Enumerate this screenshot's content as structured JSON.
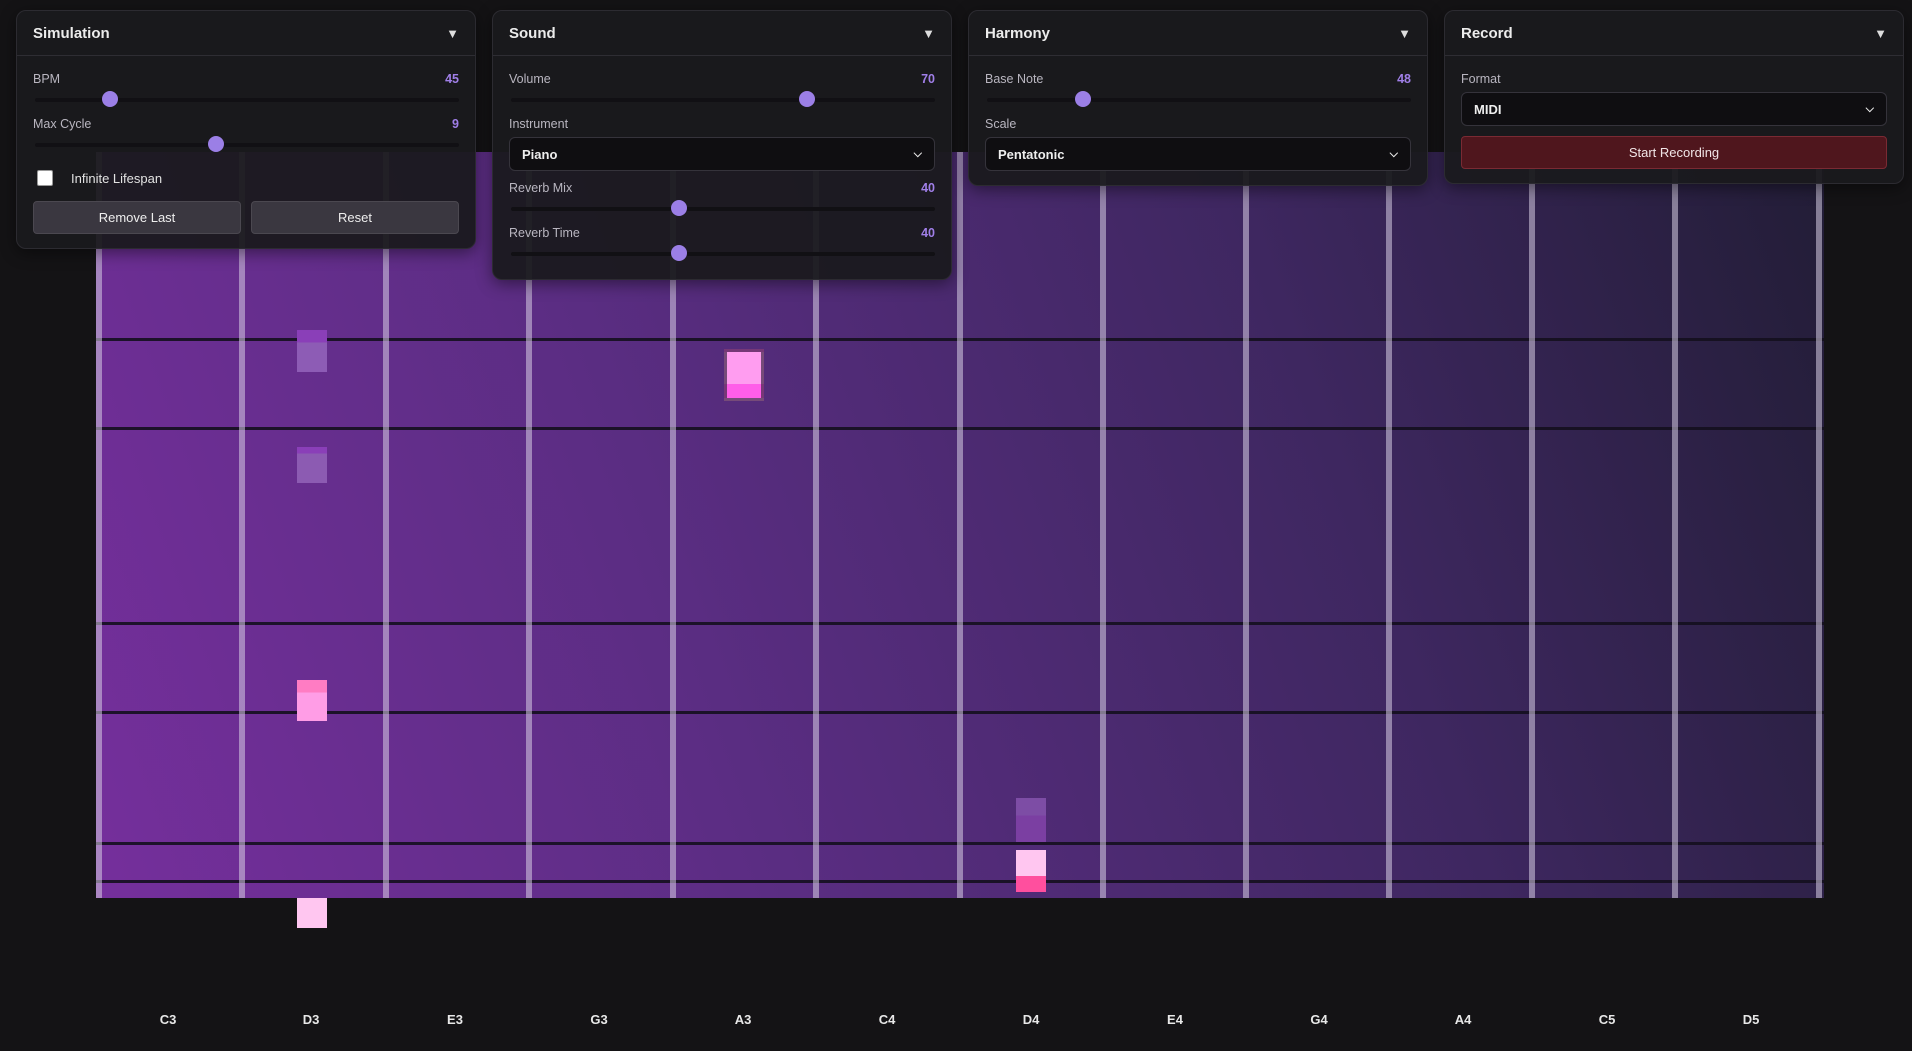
{
  "panels": {
    "simulation": {
      "title": "Simulation",
      "bpm": {
        "label": "BPM",
        "value": "45",
        "fraction": 0.18
      },
      "max_cycle": {
        "label": "Max Cycle",
        "value": "9",
        "fraction": 0.43
      },
      "infinite_lifespan": {
        "label": "Infinite Lifespan",
        "checked": false
      },
      "remove_last_label": "Remove Last",
      "reset_label": "Reset"
    },
    "sound": {
      "title": "Sound",
      "volume": {
        "label": "Volume",
        "value": "70",
        "fraction": 0.7
      },
      "instrument": {
        "label": "Instrument",
        "selected": "Piano"
      },
      "reverb_mix": {
        "label": "Reverb Mix",
        "value": "40",
        "fraction": 0.4
      },
      "reverb_time": {
        "label": "Reverb Time",
        "value": "40",
        "fraction": 0.4
      }
    },
    "harmony": {
      "title": "Harmony",
      "base_note": {
        "label": "Base Note",
        "value": "48",
        "fraction": 0.23
      },
      "scale": {
        "label": "Scale",
        "selected": "Pentatonic"
      }
    },
    "record": {
      "title": "Record",
      "format": {
        "label": "Format",
        "selected": "MIDI"
      },
      "start_label": "Start Recording"
    }
  },
  "lanes": {
    "notes": [
      "C3",
      "D3",
      "E3",
      "G3",
      "A3",
      "C4",
      "D4",
      "E4",
      "G4",
      "A4",
      "C5",
      "D5"
    ]
  },
  "icons": {
    "collapse": "triangle-down-icon",
    "select_chevron": "chevron-down-icon"
  },
  "colors": {
    "accent": "#9b7fe6",
    "record": "#4f161d",
    "field_start": "#752f9c",
    "field_end": "#221d36",
    "note_light": "#ffc6ef",
    "note_pink": "#ff8fdc",
    "note_faded": "#8a4fae"
  }
}
